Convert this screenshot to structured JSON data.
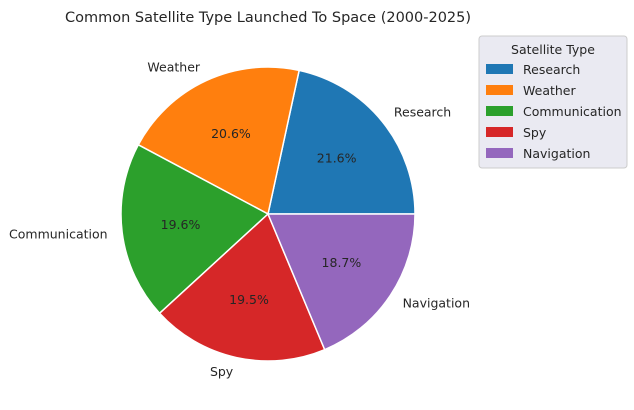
{
  "chart_data": {
    "type": "pie",
    "title": "Common Satellite Type Launched To Space (2000-2025)",
    "categories": [
      "Research",
      "Weather",
      "Communication",
      "Spy",
      "Navigation"
    ],
    "values": [
      21.6,
      20.6,
      19.6,
      19.5,
      18.7
    ],
    "value_labels": [
      "21.6%",
      "20.6%",
      "19.6%",
      "19.5%",
      "18.7%"
    ],
    "colors": [
      "#1f77b4",
      "#ff7f0e",
      "#2ca02c",
      "#d62728",
      "#9467bd"
    ],
    "start_angle_deg": 0,
    "direction": "counterclockwise",
    "legend": {
      "title": "Satellite Type",
      "placement": "upper-right-outside",
      "items": [
        "Research",
        "Weather",
        "Communication",
        "Spy",
        "Navigation"
      ]
    }
  }
}
